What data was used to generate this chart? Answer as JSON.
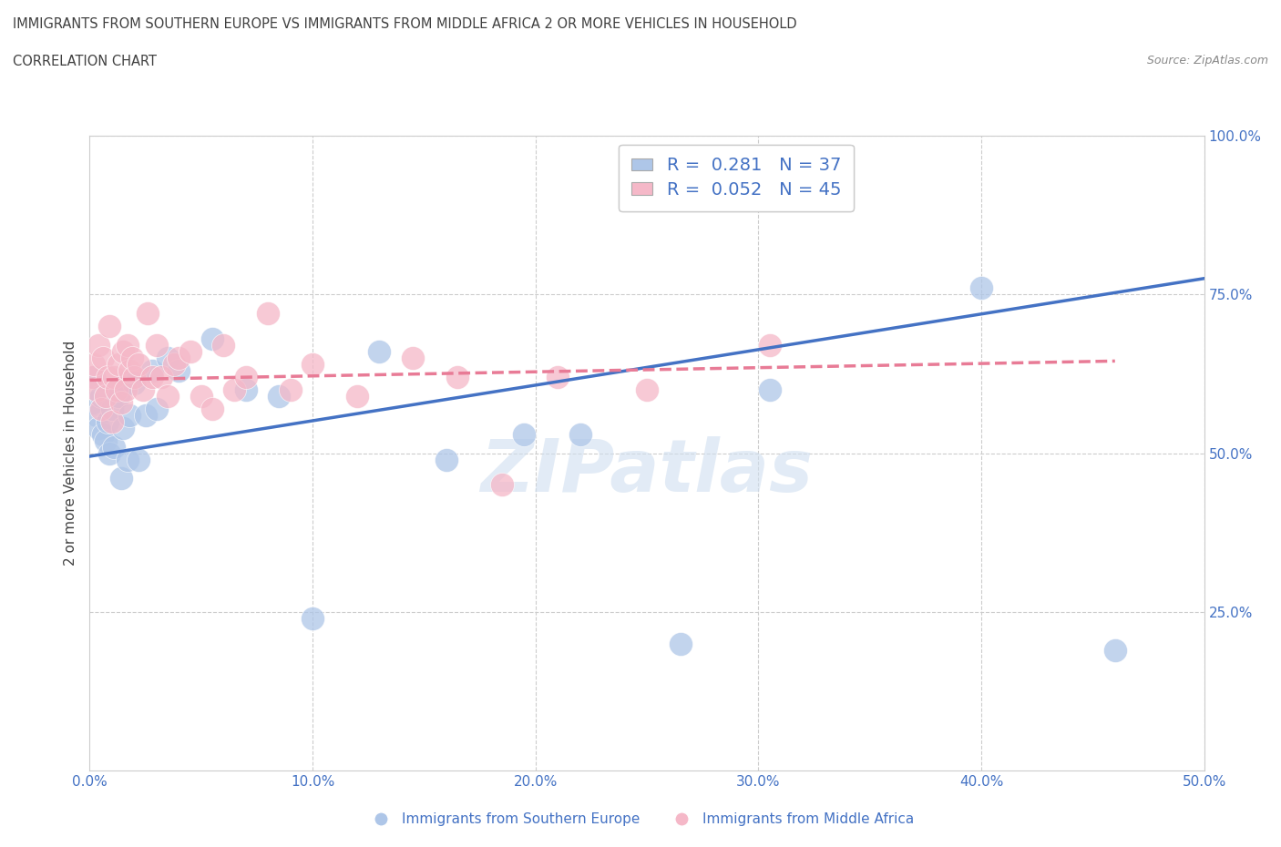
{
  "title_line1": "IMMIGRANTS FROM SOUTHERN EUROPE VS IMMIGRANTS FROM MIDDLE AFRICA 2 OR MORE VEHICLES IN HOUSEHOLD",
  "title_line2": "CORRELATION CHART",
  "source_text": "Source: ZipAtlas.com",
  "ylabel": "2 or more Vehicles in Household",
  "xlim": [
    0.0,
    0.5
  ],
  "ylim": [
    0.0,
    1.0
  ],
  "xtick_labels": [
    "0.0%",
    "",
    "10.0%",
    "",
    "20.0%",
    "",
    "30.0%",
    "",
    "40.0%",
    "",
    "50.0%"
  ],
  "xtick_vals": [
    0.0,
    0.05,
    0.1,
    0.15,
    0.2,
    0.25,
    0.3,
    0.35,
    0.4,
    0.45,
    0.5
  ],
  "ytick_labels_right": [
    "25.0%",
    "50.0%",
    "75.0%",
    "100.0%"
  ],
  "ytick_vals": [
    0.25,
    0.5,
    0.75,
    1.0
  ],
  "legend_labels": [
    "Immigrants from Southern Europe",
    "Immigrants from Middle Africa"
  ],
  "R_blue": 0.281,
  "N_blue": 37,
  "R_pink": 0.052,
  "N_pink": 45,
  "blue_color": "#aec6e8",
  "pink_color": "#f5b8c8",
  "blue_line_color": "#4472c4",
  "pink_line_color": "#e87b96",
  "title_color": "#404040",
  "axis_label_color": "#4472c4",
  "tick_label_color": "#4472c4",
  "source_color": "#888888",
  "watermark_color": "#d0dff0",
  "grid_color": "#cccccc",
  "blue_scatter_x": [
    0.001,
    0.002,
    0.003,
    0.004,
    0.005,
    0.006,
    0.007,
    0.008,
    0.009,
    0.01,
    0.011,
    0.012,
    0.013,
    0.014,
    0.015,
    0.016,
    0.017,
    0.018,
    0.02,
    0.022,
    0.025,
    0.028,
    0.03,
    0.035,
    0.04,
    0.055,
    0.07,
    0.085,
    0.1,
    0.13,
    0.16,
    0.195,
    0.22,
    0.265,
    0.305,
    0.4,
    0.46
  ],
  "blue_scatter_y": [
    0.58,
    0.62,
    0.56,
    0.54,
    0.59,
    0.53,
    0.52,
    0.55,
    0.5,
    0.57,
    0.51,
    0.6,
    0.59,
    0.46,
    0.54,
    0.61,
    0.49,
    0.56,
    0.61,
    0.49,
    0.56,
    0.63,
    0.57,
    0.65,
    0.63,
    0.68,
    0.6,
    0.59,
    0.24,
    0.66,
    0.49,
    0.53,
    0.53,
    0.2,
    0.6,
    0.76,
    0.19
  ],
  "pink_scatter_x": [
    0.001,
    0.002,
    0.003,
    0.004,
    0.005,
    0.006,
    0.007,
    0.008,
    0.009,
    0.01,
    0.011,
    0.012,
    0.013,
    0.014,
    0.015,
    0.016,
    0.017,
    0.018,
    0.019,
    0.02,
    0.022,
    0.024,
    0.026,
    0.028,
    0.03,
    0.032,
    0.035,
    0.038,
    0.04,
    0.045,
    0.05,
    0.055,
    0.06,
    0.065,
    0.07,
    0.08,
    0.09,
    0.1,
    0.12,
    0.145,
    0.165,
    0.185,
    0.21,
    0.25,
    0.305
  ],
  "pink_scatter_y": [
    0.62,
    0.64,
    0.6,
    0.67,
    0.57,
    0.65,
    0.59,
    0.62,
    0.7,
    0.55,
    0.62,
    0.6,
    0.64,
    0.58,
    0.66,
    0.6,
    0.67,
    0.63,
    0.65,
    0.62,
    0.64,
    0.6,
    0.72,
    0.62,
    0.67,
    0.62,
    0.59,
    0.64,
    0.65,
    0.66,
    0.59,
    0.57,
    0.67,
    0.6,
    0.62,
    0.72,
    0.6,
    0.64,
    0.59,
    0.65,
    0.62,
    0.45,
    0.62,
    0.6,
    0.67
  ],
  "blue_trendline_x": [
    0.0,
    0.5
  ],
  "blue_trendline_y": [
    0.495,
    0.775
  ],
  "pink_trendline_x": [
    0.0,
    0.46
  ],
  "pink_trendline_y": [
    0.615,
    0.645
  ]
}
